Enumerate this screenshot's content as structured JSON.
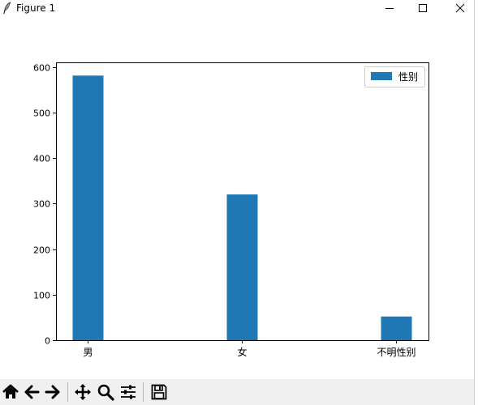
{
  "window": {
    "title": "Figure 1",
    "app_icon": "feather-icon",
    "controls": [
      "minimize-icon",
      "maximize-icon",
      "close-icon"
    ]
  },
  "toolbar": {
    "buttons": [
      "home-icon",
      "back-arrow-icon",
      "forward-arrow-icon",
      "pan-icon",
      "zoom-icon",
      "configure-subplots-icon",
      "save-icon"
    ]
  },
  "chart_data": {
    "type": "bar",
    "categories": [
      "男",
      "女",
      "不明性别"
    ],
    "series": [
      {
        "name": "性别",
        "values": [
          581,
          320,
          52
        ],
        "color": "#1f77b4"
      }
    ],
    "ylim": [
      0,
      610
    ],
    "yticks": [
      0,
      100,
      200,
      300,
      400,
      500,
      600
    ],
    "grid": false,
    "legend_position": "top-right"
  }
}
